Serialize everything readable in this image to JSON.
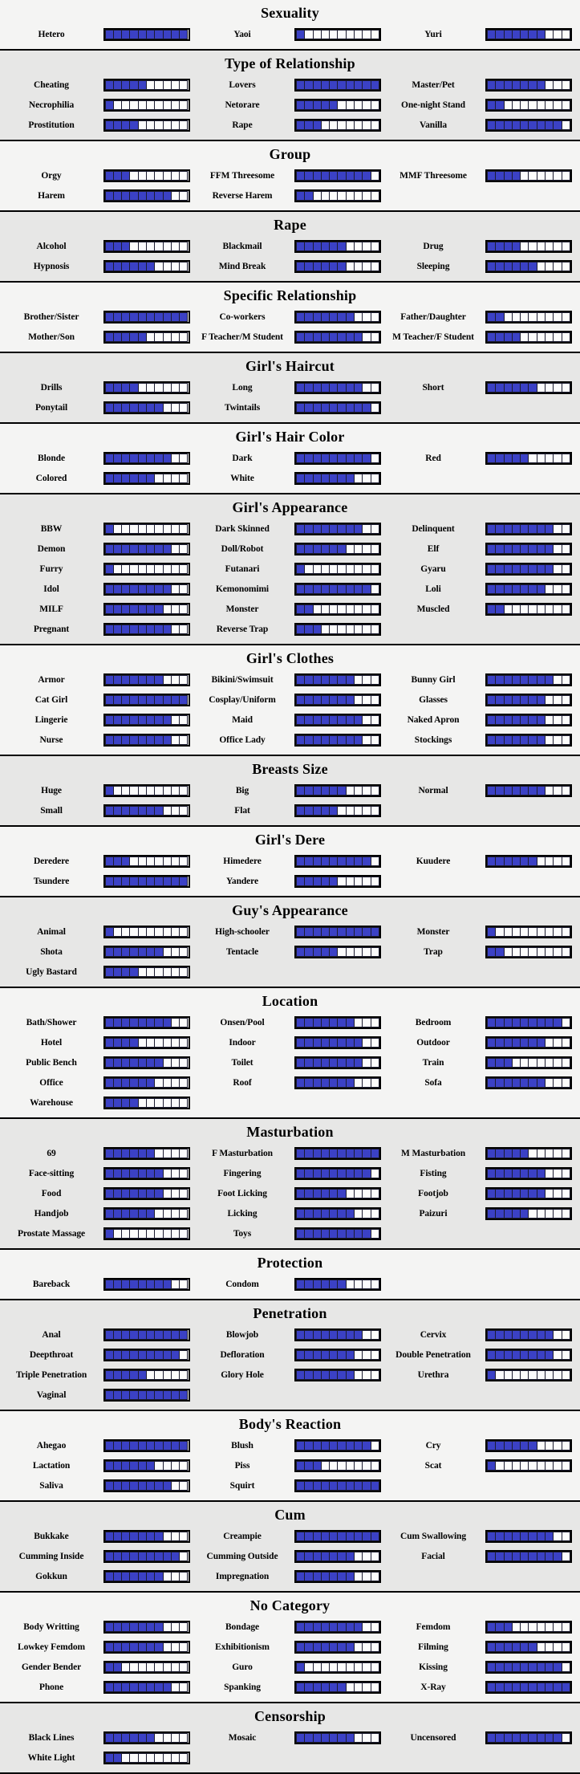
{
  "scale_max": 10,
  "colors": {
    "filled_segment": "#3b41c5",
    "empty_segment": "#fcfcfc",
    "segment_border": "#1c1c30",
    "bar_border": "#000000",
    "section_light_bg": "#f4f4f3",
    "section_gray_bg": "#e7e7e6",
    "separator": "#000000",
    "text": "#000000"
  },
  "chart_data": [
    {
      "type": "bar",
      "title": "Sexuality",
      "bg": "light",
      "ylim": [
        0,
        10
      ],
      "categories": [
        "Hetero",
        "Yaoi",
        "Yuri"
      ],
      "values": [
        10,
        1,
        7
      ]
    },
    {
      "type": "bar",
      "title": "Type of Relationship",
      "bg": "gray",
      "ylim": [
        0,
        10
      ],
      "categories": [
        "Cheating",
        "Lovers",
        "Master/Pet",
        "Necrophilia",
        "Netorare",
        "One-night Stand",
        "Prostitution",
        "Rape",
        "Vanilla"
      ],
      "values": [
        5,
        10,
        7,
        1,
        5,
        2,
        4,
        3,
        9
      ]
    },
    {
      "type": "bar",
      "title": "Group",
      "bg": "light",
      "ylim": [
        0,
        10
      ],
      "categories": [
        "Orgy",
        "FFM Threesome",
        "MMF Threesome",
        "Harem",
        "Reverse Harem"
      ],
      "values": [
        3,
        9,
        4,
        8,
        2
      ]
    },
    {
      "type": "bar",
      "title": "Rape",
      "bg": "gray",
      "ylim": [
        0,
        10
      ],
      "categories": [
        "Alcohol",
        "Blackmail",
        "Drug",
        "Hypnosis",
        "Mind Break",
        "Sleeping"
      ],
      "values": [
        3,
        6,
        4,
        6,
        6,
        6
      ]
    },
    {
      "type": "bar",
      "title": "Specific Relationship",
      "bg": "light",
      "ylim": [
        0,
        10
      ],
      "categories": [
        "Brother/Sister",
        "Co-workers",
        "Father/Daughter",
        "Mother/Son",
        "F Teacher/M Student",
        "M Teacher/F Student"
      ],
      "values": [
        10,
        7,
        2,
        5,
        8,
        4
      ]
    },
    {
      "type": "bar",
      "title": "Girl's Haircut",
      "bg": "gray",
      "ylim": [
        0,
        10
      ],
      "categories": [
        "Drills",
        "Long",
        "Short",
        "Ponytail",
        "Twintails"
      ],
      "values": [
        4,
        8,
        6,
        7,
        9
      ]
    },
    {
      "type": "bar",
      "title": "Girl's Hair Color",
      "bg": "light",
      "ylim": [
        0,
        10
      ],
      "categories": [
        "Blonde",
        "Dark",
        "Red",
        "Colored",
        "White"
      ],
      "values": [
        8,
        9,
        5,
        6,
        7
      ]
    },
    {
      "type": "bar",
      "title": "Girl's Appearance",
      "bg": "gray",
      "ylim": [
        0,
        10
      ],
      "categories": [
        "BBW",
        "Dark Skinned",
        "Delinquent",
        "Demon",
        "Doll/Robot",
        "Elf",
        "Furry",
        "Futanari",
        "Gyaru",
        "Idol",
        "Kemonomimi",
        "Loli",
        "MILF",
        "Monster",
        "Muscled",
        "Pregnant",
        "Reverse Trap"
      ],
      "values": [
        1,
        8,
        8,
        8,
        6,
        8,
        1,
        1,
        8,
        8,
        9,
        7,
        7,
        2,
        2,
        8,
        3
      ]
    },
    {
      "type": "bar",
      "title": "Girl's Clothes",
      "bg": "light",
      "ylim": [
        0,
        10
      ],
      "categories": [
        "Armor",
        "Bikini/Swimsuit",
        "Bunny Girl",
        "Cat Girl",
        "Cosplay/Uniform",
        "Glasses",
        "Lingerie",
        "Maid",
        "Naked Apron",
        "Nurse",
        "Office Lady",
        "Stockings"
      ],
      "values": [
        7,
        7,
        8,
        10,
        7,
        7,
        8,
        8,
        7,
        8,
        8,
        7
      ]
    },
    {
      "type": "bar",
      "title": "Breasts Size",
      "bg": "gray",
      "ylim": [
        0,
        10
      ],
      "categories": [
        "Huge",
        "Big",
        "Normal",
        "Small",
        "Flat"
      ],
      "values": [
        1,
        6,
        7,
        7,
        5
      ]
    },
    {
      "type": "bar",
      "title": "Girl's Dere",
      "bg": "light",
      "ylim": [
        0,
        10
      ],
      "categories": [
        "Deredere",
        "Himedere",
        "Kuudere",
        "Tsundere",
        "Yandere"
      ],
      "values": [
        3,
        9,
        6,
        10,
        5
      ]
    },
    {
      "type": "bar",
      "title": "Guy's Appearance",
      "bg": "gray",
      "ylim": [
        0,
        10
      ],
      "categories": [
        "Animal",
        "High-schooler",
        "Monster",
        "Shota",
        "Tentacle",
        "Trap",
        "Ugly Bastard"
      ],
      "values": [
        1,
        10,
        1,
        7,
        5,
        2,
        4
      ]
    },
    {
      "type": "bar",
      "title": "Location",
      "bg": "light",
      "ylim": [
        0,
        10
      ],
      "categories": [
        "Bath/Shower",
        "Onsen/Pool",
        "Bedroom",
        "Hotel",
        "Indoor",
        "Outdoor",
        "Public Bench",
        "Toilet",
        "Train",
        "Office",
        "Roof",
        "Sofa",
        "Warehouse"
      ],
      "values": [
        8,
        7,
        9,
        4,
        8,
        7,
        7,
        8,
        3,
        6,
        7,
        7,
        4
      ]
    },
    {
      "type": "bar",
      "title": "Masturbation",
      "bg": "gray",
      "ylim": [
        0,
        10
      ],
      "categories": [
        "69",
        "F Masturbation",
        "M Masturbation",
        "Face-sitting",
        "Fingering",
        "Fisting",
        "Food",
        "Foot Licking",
        "Footjob",
        "Handjob",
        "Licking",
        "Paizuri",
        "Prostate Massage",
        "Toys"
      ],
      "values": [
        6,
        10,
        5,
        7,
        9,
        7,
        7,
        6,
        7,
        6,
        7,
        5,
        1,
        9
      ]
    },
    {
      "type": "bar",
      "title": "Protection",
      "bg": "light",
      "ylim": [
        0,
        10
      ],
      "categories": [
        "Bareback",
        "Condom"
      ],
      "values": [
        8,
        6
      ]
    },
    {
      "type": "bar",
      "title": "Penetration",
      "bg": "gray",
      "ylim": [
        0,
        10
      ],
      "categories": [
        "Anal",
        "Blowjob",
        "Cervix",
        "Deepthroat",
        "Defloration",
        "Double Penetration",
        "Triple Penetration",
        "Glory Hole",
        "Urethra",
        "Vaginal"
      ],
      "values": [
        10,
        8,
        8,
        9,
        7,
        8,
        5,
        7,
        1,
        10
      ]
    },
    {
      "type": "bar",
      "title": "Body's Reaction",
      "bg": "light",
      "ylim": [
        0,
        10
      ],
      "categories": [
        "Ahegao",
        "Blush",
        "Cry",
        "Lactation",
        "Piss",
        "Scat",
        "Saliva",
        "Squirt"
      ],
      "values": [
        10,
        9,
        6,
        6,
        3,
        1,
        8,
        10
      ]
    },
    {
      "type": "bar",
      "title": "Cum",
      "bg": "gray",
      "ylim": [
        0,
        10
      ],
      "categories": [
        "Bukkake",
        "Creampie",
        "Cum Swallowing",
        "Cumming Inside",
        "Cumming Outside",
        "Facial",
        "Gokkun",
        "Impregnation"
      ],
      "values": [
        7,
        10,
        8,
        9,
        7,
        9,
        7,
        7
      ]
    },
    {
      "type": "bar",
      "title": "No Category",
      "bg": "light",
      "ylim": [
        0,
        10
      ],
      "categories": [
        "Body Writting",
        "Bondage",
        "Femdom",
        "Lowkey Femdom",
        "Exhibitionism",
        "Filming",
        "Gender Bender",
        "Guro",
        "Kissing",
        "Phone",
        "Spanking",
        "X-Ray"
      ],
      "values": [
        7,
        8,
        3,
        7,
        7,
        6,
        2,
        1,
        9,
        8,
        6,
        10
      ]
    },
    {
      "type": "bar",
      "title": "Censorship",
      "bg": "gray",
      "ylim": [
        0,
        10
      ],
      "categories": [
        "Black Lines",
        "Mosaic",
        "Uncensored",
        "White Light"
      ],
      "values": [
        6,
        7,
        9,
        2
      ]
    }
  ]
}
